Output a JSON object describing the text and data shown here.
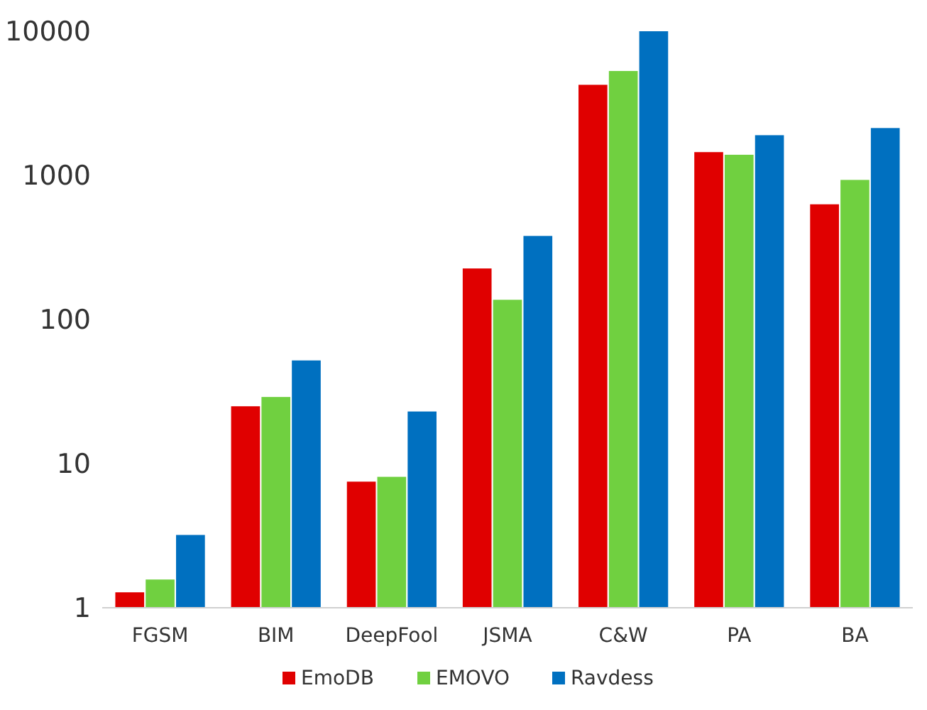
{
  "chart_data": {
    "type": "bar",
    "categories": [
      "FGSM",
      "BIM",
      "DeepFool",
      "JSMA",
      "C&W",
      "PA",
      "BA"
    ],
    "series": [
      {
        "name": "EmoDB",
        "color": "#e00000",
        "values": [
          1.28,
          25,
          7.5,
          226,
          4250,
          1450,
          630
        ]
      },
      {
        "name": "EMOVO",
        "color": "#70d040",
        "values": [
          1.57,
          29,
          8.1,
          137,
          5300,
          1390,
          930
        ]
      },
      {
        "name": "Ravdess",
        "color": "#0070c0",
        "values": [
          3.2,
          52,
          23,
          380,
          10000,
          1900,
          2130
        ]
      }
    ],
    "log": true,
    "ylim": [
      1,
      10000
    ],
    "yticks": [
      1,
      10,
      100,
      1000,
      10000
    ],
    "legend": "bottom",
    "grid": false
  }
}
